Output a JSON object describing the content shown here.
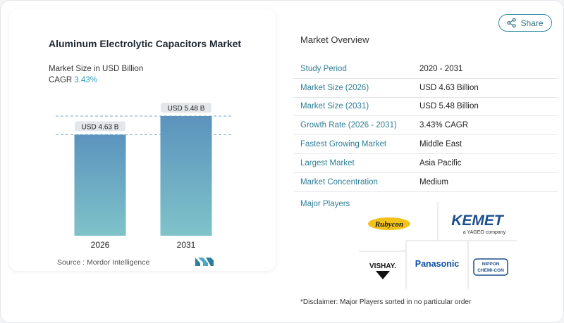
{
  "share": {
    "label": "Share",
    "icon": "share-icon"
  },
  "chart": {
    "title": "Aluminum Electrolytic Capacitors Market",
    "subtitle": "Market Size in USD Billion",
    "cagr_label": "CAGR",
    "cagr_value": "3.43%",
    "source": "Source :  Mordor Intelligence"
  },
  "chart_data": {
    "type": "bar",
    "title": "Aluminum Electrolytic Capacitors Market",
    "ylabel": "Market Size in USD Billion",
    "categories": [
      "2026",
      "2031"
    ],
    "values": [
      4.63,
      5.48
    ],
    "data_labels": [
      "USD 4.63 B",
      "USD 5.48 B"
    ],
    "ylim": [
      0,
      5.48
    ],
    "grid": false
  },
  "overview": {
    "title": "Market Overview",
    "rows": [
      {
        "key": "Study Period",
        "value": "2020 - 2031"
      },
      {
        "key": "Market Size (2026)",
        "value": "USD 4.63 Billion"
      },
      {
        "key": "Market Size (2031)",
        "value": "USD 5.48 Billion"
      },
      {
        "key": "Growth Rate (2026 - 2031)",
        "value": "3.43% CAGR"
      },
      {
        "key": "Fastest Growing Market",
        "value": "Middle East"
      },
      {
        "key": "Largest Market",
        "value": "Asia Pacific"
      },
      {
        "key": "Market Concentration",
        "value": "Medium"
      }
    ]
  },
  "players": {
    "title": "Major Players",
    "rubycon": "Rubycon",
    "kemet": "KEMET",
    "kemet_sub": "a YAGEO company",
    "vishay": "VISHAY.",
    "panasonic": "Panasonic",
    "nippon_1": "NIPPON",
    "nippon_2": "CHEMI-CON"
  },
  "disclaimer": "*Disclaimer: Major Players sorted in no particular order",
  "colors": {
    "accent": "#2f7f95",
    "bar_top": "#5b93bd",
    "bar_bottom": "#7fc3c9",
    "kemet": "#1f4e8c",
    "rubycon": "#f2c21b"
  }
}
